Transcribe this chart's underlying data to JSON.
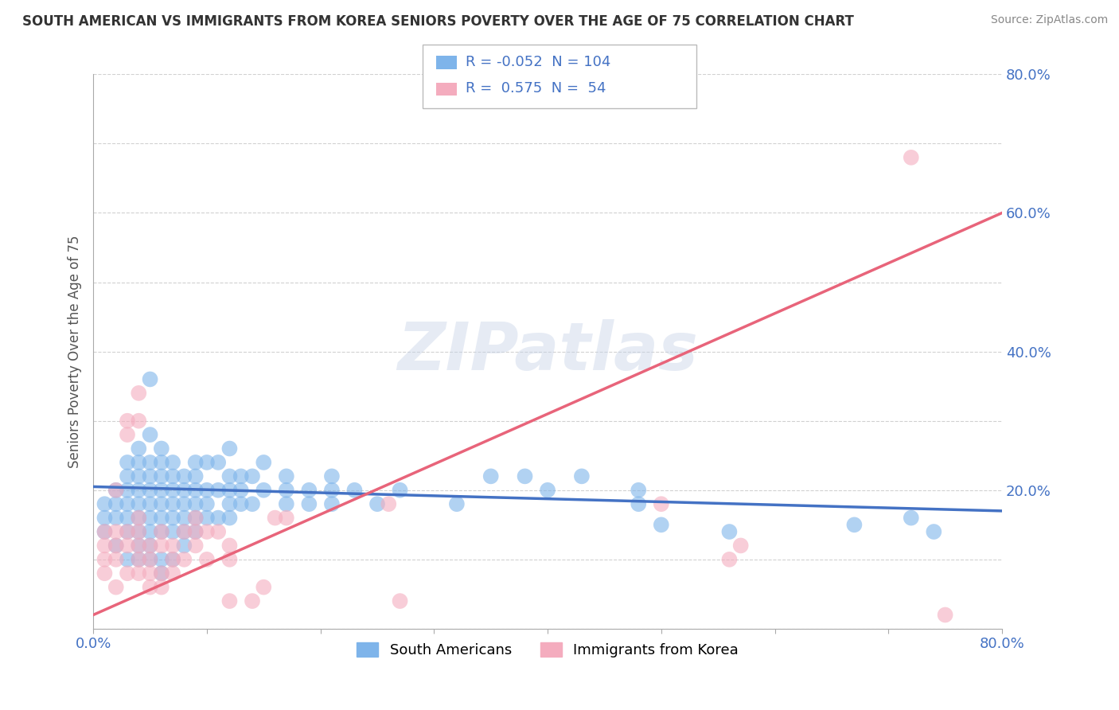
{
  "title": "SOUTH AMERICAN VS IMMIGRANTS FROM KOREA SENIORS POVERTY OVER THE AGE OF 75 CORRELATION CHART",
  "source": "Source: ZipAtlas.com",
  "ylabel": "Seniors Poverty Over the Age of 75",
  "xlabel": "",
  "xlim": [
    0.0,
    0.8
  ],
  "ylim": [
    0.0,
    0.8
  ],
  "blue_color": "#7EB4EA",
  "pink_color": "#F4ACBE",
  "blue_line_color": "#4472C4",
  "pink_line_color": "#E8647A",
  "R_blue": -0.052,
  "N_blue": 104,
  "R_pink": 0.575,
  "N_pink": 54,
  "watermark": "ZIPatlas",
  "legend_label_blue": "South Americans",
  "legend_label_pink": "Immigrants from Korea",
  "blue_scatter": [
    [
      0.01,
      0.14
    ],
    [
      0.01,
      0.16
    ],
    [
      0.01,
      0.18
    ],
    [
      0.02,
      0.12
    ],
    [
      0.02,
      0.16
    ],
    [
      0.02,
      0.18
    ],
    [
      0.02,
      0.2
    ],
    [
      0.03,
      0.1
    ],
    [
      0.03,
      0.14
    ],
    [
      0.03,
      0.16
    ],
    [
      0.03,
      0.18
    ],
    [
      0.03,
      0.2
    ],
    [
      0.03,
      0.22
    ],
    [
      0.03,
      0.24
    ],
    [
      0.04,
      0.1
    ],
    [
      0.04,
      0.12
    ],
    [
      0.04,
      0.14
    ],
    [
      0.04,
      0.16
    ],
    [
      0.04,
      0.18
    ],
    [
      0.04,
      0.2
    ],
    [
      0.04,
      0.22
    ],
    [
      0.04,
      0.24
    ],
    [
      0.04,
      0.26
    ],
    [
      0.05,
      0.1
    ],
    [
      0.05,
      0.12
    ],
    [
      0.05,
      0.14
    ],
    [
      0.05,
      0.16
    ],
    [
      0.05,
      0.18
    ],
    [
      0.05,
      0.2
    ],
    [
      0.05,
      0.22
    ],
    [
      0.05,
      0.24
    ],
    [
      0.05,
      0.28
    ],
    [
      0.05,
      0.36
    ],
    [
      0.06,
      0.08
    ],
    [
      0.06,
      0.1
    ],
    [
      0.06,
      0.14
    ],
    [
      0.06,
      0.16
    ],
    [
      0.06,
      0.18
    ],
    [
      0.06,
      0.2
    ],
    [
      0.06,
      0.22
    ],
    [
      0.06,
      0.24
    ],
    [
      0.06,
      0.26
    ],
    [
      0.07,
      0.1
    ],
    [
      0.07,
      0.14
    ],
    [
      0.07,
      0.16
    ],
    [
      0.07,
      0.18
    ],
    [
      0.07,
      0.2
    ],
    [
      0.07,
      0.22
    ],
    [
      0.07,
      0.24
    ],
    [
      0.08,
      0.12
    ],
    [
      0.08,
      0.14
    ],
    [
      0.08,
      0.16
    ],
    [
      0.08,
      0.18
    ],
    [
      0.08,
      0.2
    ],
    [
      0.08,
      0.22
    ],
    [
      0.09,
      0.14
    ],
    [
      0.09,
      0.16
    ],
    [
      0.09,
      0.18
    ],
    [
      0.09,
      0.2
    ],
    [
      0.09,
      0.22
    ],
    [
      0.09,
      0.24
    ],
    [
      0.1,
      0.16
    ],
    [
      0.1,
      0.18
    ],
    [
      0.1,
      0.2
    ],
    [
      0.1,
      0.24
    ],
    [
      0.11,
      0.16
    ],
    [
      0.11,
      0.2
    ],
    [
      0.11,
      0.24
    ],
    [
      0.12,
      0.16
    ],
    [
      0.12,
      0.18
    ],
    [
      0.12,
      0.2
    ],
    [
      0.12,
      0.22
    ],
    [
      0.12,
      0.26
    ],
    [
      0.13,
      0.18
    ],
    [
      0.13,
      0.2
    ],
    [
      0.13,
      0.22
    ],
    [
      0.14,
      0.18
    ],
    [
      0.14,
      0.22
    ],
    [
      0.15,
      0.2
    ],
    [
      0.15,
      0.24
    ],
    [
      0.17,
      0.18
    ],
    [
      0.17,
      0.2
    ],
    [
      0.17,
      0.22
    ],
    [
      0.19,
      0.18
    ],
    [
      0.19,
      0.2
    ],
    [
      0.21,
      0.18
    ],
    [
      0.21,
      0.2
    ],
    [
      0.21,
      0.22
    ],
    [
      0.23,
      0.2
    ],
    [
      0.25,
      0.18
    ],
    [
      0.27,
      0.2
    ],
    [
      0.32,
      0.18
    ],
    [
      0.35,
      0.22
    ],
    [
      0.38,
      0.22
    ],
    [
      0.4,
      0.2
    ],
    [
      0.43,
      0.22
    ],
    [
      0.48,
      0.18
    ],
    [
      0.48,
      0.2
    ],
    [
      0.5,
      0.15
    ],
    [
      0.56,
      0.14
    ],
    [
      0.67,
      0.15
    ],
    [
      0.72,
      0.16
    ],
    [
      0.74,
      0.14
    ]
  ],
  "pink_scatter": [
    [
      0.01,
      0.08
    ],
    [
      0.01,
      0.1
    ],
    [
      0.01,
      0.12
    ],
    [
      0.01,
      0.14
    ],
    [
      0.02,
      0.06
    ],
    [
      0.02,
      0.1
    ],
    [
      0.02,
      0.12
    ],
    [
      0.02,
      0.14
    ],
    [
      0.02,
      0.2
    ],
    [
      0.03,
      0.08
    ],
    [
      0.03,
      0.12
    ],
    [
      0.03,
      0.14
    ],
    [
      0.03,
      0.28
    ],
    [
      0.03,
      0.3
    ],
    [
      0.04,
      0.08
    ],
    [
      0.04,
      0.1
    ],
    [
      0.04,
      0.12
    ],
    [
      0.04,
      0.14
    ],
    [
      0.04,
      0.16
    ],
    [
      0.04,
      0.3
    ],
    [
      0.04,
      0.34
    ],
    [
      0.05,
      0.1
    ],
    [
      0.05,
      0.12
    ],
    [
      0.05,
      0.06
    ],
    [
      0.05,
      0.08
    ],
    [
      0.06,
      0.08
    ],
    [
      0.06,
      0.12
    ],
    [
      0.06,
      0.14
    ],
    [
      0.06,
      0.06
    ],
    [
      0.07,
      0.1
    ],
    [
      0.07,
      0.12
    ],
    [
      0.07,
      0.08
    ],
    [
      0.08,
      0.1
    ],
    [
      0.08,
      0.14
    ],
    [
      0.09,
      0.12
    ],
    [
      0.09,
      0.14
    ],
    [
      0.09,
      0.16
    ],
    [
      0.1,
      0.1
    ],
    [
      0.1,
      0.14
    ],
    [
      0.11,
      0.14
    ],
    [
      0.12,
      0.04
    ],
    [
      0.12,
      0.1
    ],
    [
      0.12,
      0.12
    ],
    [
      0.14,
      0.04
    ],
    [
      0.15,
      0.06
    ],
    [
      0.16,
      0.16
    ],
    [
      0.17,
      0.16
    ],
    [
      0.26,
      0.18
    ],
    [
      0.27,
      0.04
    ],
    [
      0.5,
      0.18
    ],
    [
      0.56,
      0.1
    ],
    [
      0.57,
      0.12
    ],
    [
      0.72,
      0.68
    ],
    [
      0.75,
      0.02
    ]
  ]
}
